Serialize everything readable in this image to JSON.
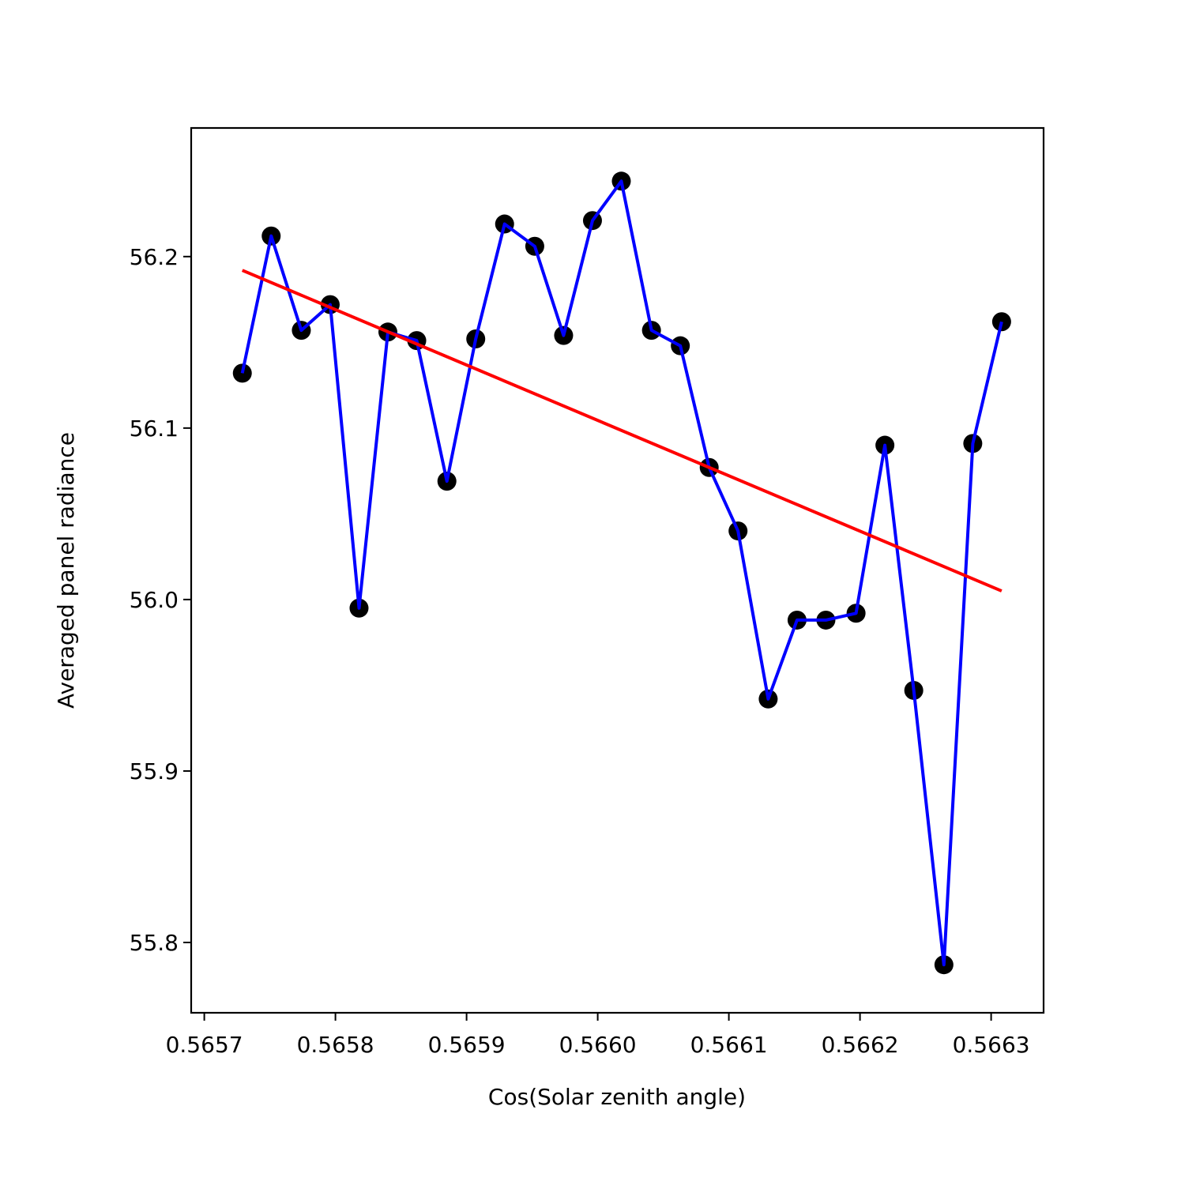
{
  "chart_data": {
    "type": "line",
    "title": "",
    "xlabel": "Cos(Solar zenith angle)",
    "ylabel": "Averaged panel radiance",
    "xlim": [
      0.56569,
      0.56634
    ],
    "ylim": [
      55.759,
      56.275
    ],
    "xticks": [
      0.5657,
      0.5658,
      0.5659,
      0.566,
      0.5661,
      0.5662,
      0.5663
    ],
    "xtick_labels": [
      "0.5657",
      "0.5658",
      "0.5659",
      "0.5660",
      "0.5661",
      "0.5662",
      "0.5663"
    ],
    "yticks": [
      55.8,
      55.9,
      56.0,
      56.1,
      56.2
    ],
    "ytick_labels": [
      "55.8",
      "55.9",
      "56.0",
      "56.1",
      "56.2"
    ],
    "grid": false,
    "legend": "none",
    "colors": {
      "markers": "#000000",
      "data_line": "#0000ff",
      "fit_line": "#ff0000"
    },
    "series": [
      {
        "style": "markers-and-line",
        "x": [
          0.565729,
          0.565751,
          0.565774,
          0.565796,
          0.565818,
          0.56584,
          0.565862,
          0.565885,
          0.565907,
          0.565929,
          0.565952,
          0.565974,
          0.565996,
          0.566018,
          0.566041,
          0.566063,
          0.566085,
          0.566107,
          0.56613,
          0.566152,
          0.566174,
          0.566197,
          0.566219,
          0.566241,
          0.566264,
          0.566286,
          0.566308
        ],
        "y": [
          56.132,
          56.212,
          56.157,
          56.172,
          55.995,
          56.156,
          56.151,
          56.069,
          56.152,
          56.219,
          56.206,
          56.154,
          56.221,
          56.244,
          56.157,
          56.148,
          56.077,
          56.04,
          55.942,
          55.988,
          55.988,
          55.992,
          56.09,
          55.947,
          55.787,
          56.091,
          56.162
        ]
      },
      {
        "style": "fit-line",
        "x": [
          0.565729,
          0.566308
        ],
        "y": [
          56.192,
          56.005
        ]
      }
    ]
  }
}
